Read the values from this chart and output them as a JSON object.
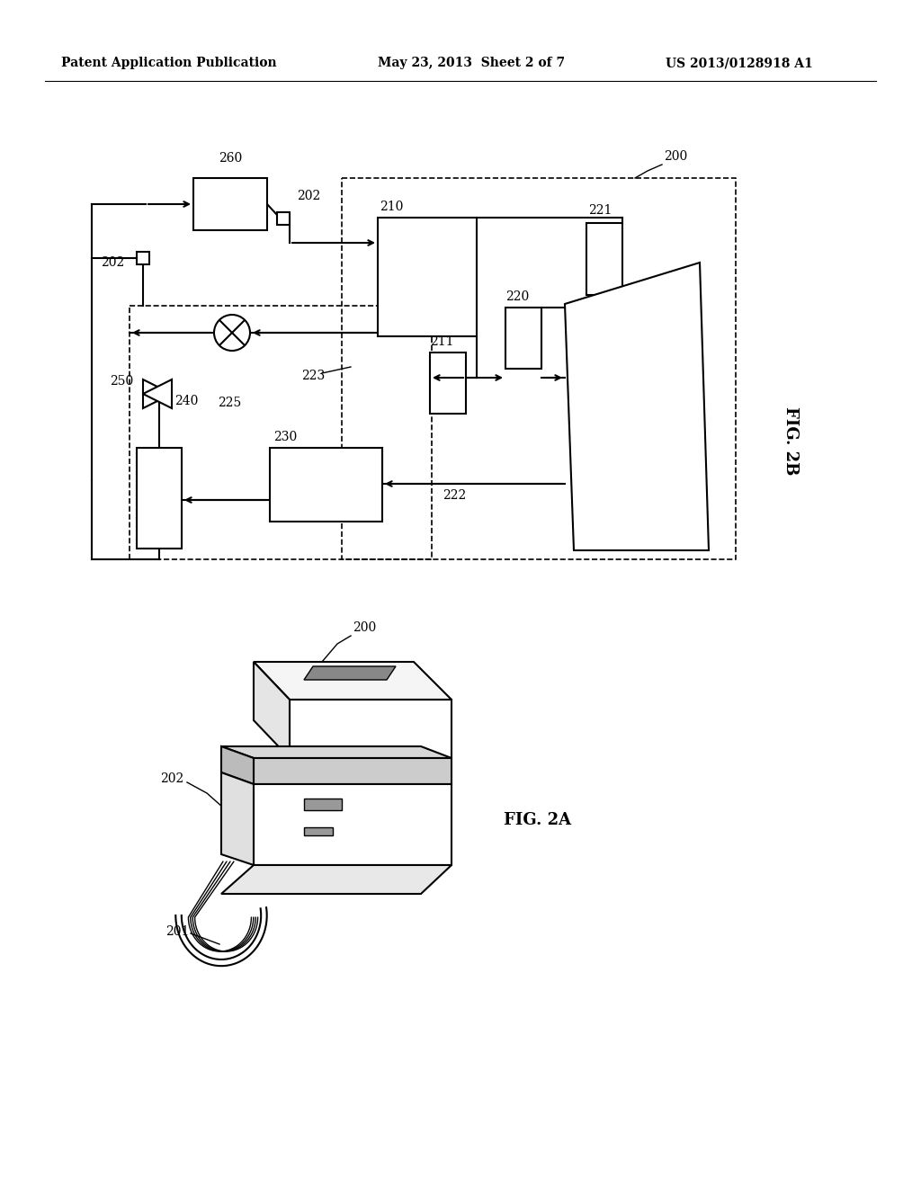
{
  "background_color": "#ffffff",
  "header_left": "Patent Application Publication",
  "header_center": "May 23, 2013  Sheet 2 of 7",
  "header_right": "US 2013/0128918 A1",
  "fig2b_label": "FIG. 2B",
  "fig2a_label": "FIG. 2A",
  "lw_main": 1.5,
  "lw_thin": 1.0,
  "fs_label": 10,
  "fs_header": 10,
  "fs_fig": 13
}
